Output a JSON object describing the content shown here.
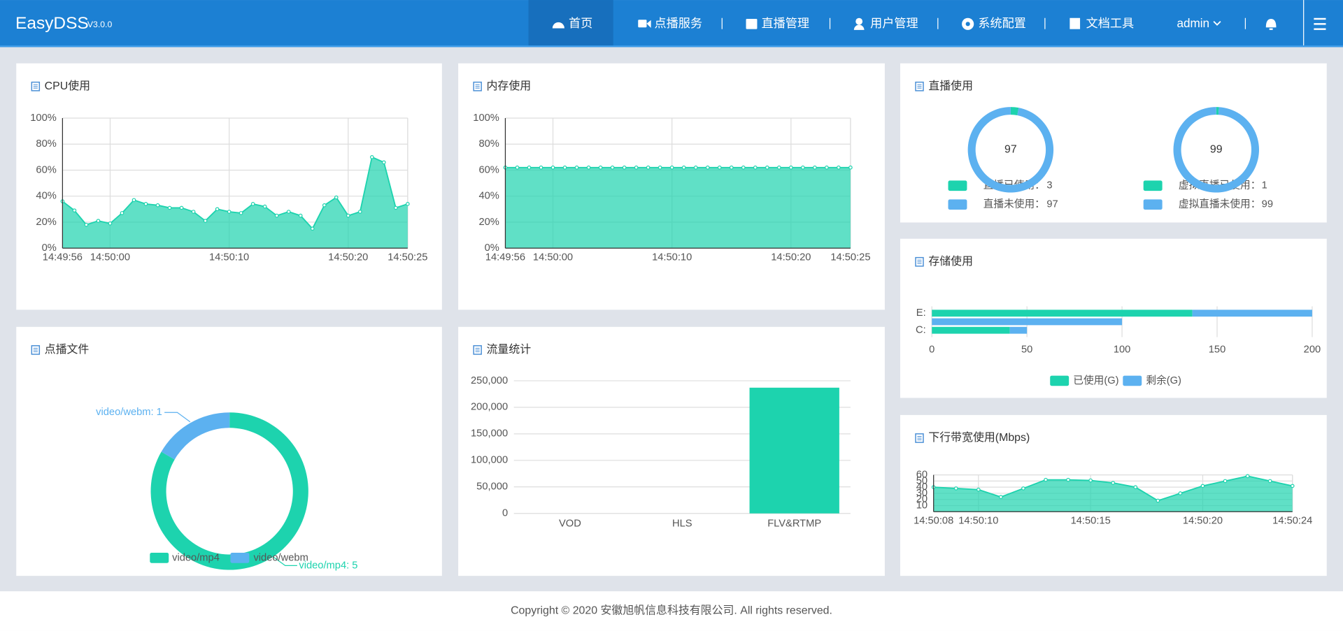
{
  "header": {
    "logo": "EasyDSS",
    "version": "V3.0.0",
    "nav": [
      "首页",
      "点播服务",
      "直播管理",
      "用户管理",
      "系统配置",
      "文档工具"
    ],
    "user": "admin"
  },
  "chart_data": [
    {
      "type": "area",
      "title": "CPU使用",
      "categories": [
        "14:49:56",
        null,
        null,
        null,
        "14:50:00",
        null,
        null,
        null,
        null,
        null,
        null,
        null,
        null,
        null,
        "14:50:10",
        null,
        null,
        null,
        null,
        null,
        null,
        null,
        null,
        null,
        "14:50:20",
        null,
        null,
        null,
        null,
        "14:50:25"
      ],
      "values": [
        36,
        29,
        18,
        21,
        19,
        27,
        37,
        34,
        33,
        31,
        31,
        28,
        21,
        30,
        28,
        27,
        34,
        32,
        25,
        28,
        25,
        15,
        33,
        39,
        25,
        28,
        70,
        66,
        31,
        34
      ],
      "color": "#1dd3ae",
      "ylim": [
        0,
        100
      ],
      "yticks": [
        {
          "value": 0,
          "label": "0%"
        },
        {
          "value": 20,
          "label": "20%"
        },
        {
          "value": 40,
          "label": "40%"
        },
        {
          "value": 60,
          "label": "60%"
        },
        {
          "value": 80,
          "label": "80%"
        },
        {
          "value": 100,
          "label": "100%"
        }
      ],
      "grid": true
    },
    {
      "type": "area",
      "title": "内存使用",
      "categories": [
        "14:49:56",
        null,
        null,
        null,
        "14:50:00",
        null,
        null,
        null,
        null,
        null,
        null,
        null,
        null,
        null,
        "14:50:10",
        null,
        null,
        null,
        null,
        null,
        null,
        null,
        null,
        null,
        "14:50:20",
        null,
        null,
        null,
        null,
        "14:50:25"
      ],
      "values": [
        62,
        62,
        62,
        62,
        62,
        62,
        62,
        62,
        62,
        62,
        62,
        62,
        62,
        62,
        62,
        62,
        62,
        62,
        62,
        62,
        62,
        62,
        62,
        62,
        62,
        62,
        62,
        62,
        62,
        62
      ],
      "color": "#1dd3ae",
      "ylim": [
        0,
        100
      ],
      "yticks": [
        {
          "value": 0,
          "label": "0%"
        },
        {
          "value": 20,
          "label": "20%"
        },
        {
          "value": 40,
          "label": "40%"
        },
        {
          "value": 60,
          "label": "60%"
        },
        {
          "value": 80,
          "label": "80%"
        },
        {
          "value": 100,
          "label": "100%"
        }
      ],
      "grid": true
    },
    {
      "type": "donut",
      "title": "直播使用",
      "colors": [
        "#1dd3ae",
        "#5cb1f0"
      ],
      "pies": [
        {
          "categories": [
            "直播已使用：",
            "直播未使用："
          ],
          "values": [
            3,
            97
          ]
        },
        {
          "categories": [
            "虚拟直播已使用：",
            "虚拟直播未使用："
          ],
          "values": [
            1,
            99
          ]
        }
      ]
    },
    {
      "type": "hbar",
      "title": "存储使用",
      "categories": [
        "E:",
        null,
        "C:"
      ],
      "series": [
        {
          "name": "已使用(G)",
          "color": "#1dd3ae",
          "values": [
            137,
            0,
            41
          ]
        },
        {
          "name": "剩余(G)",
          "color": "#5cb1f0",
          "values": [
            63,
            100,
            9
          ]
        }
      ],
      "xlim": [
        0,
        200
      ],
      "xticks": [
        0,
        50,
        100,
        150,
        200
      ],
      "grid": true
    },
    {
      "type": "pie",
      "title": "点播文件",
      "categories": [
        "video/mp4",
        "video/webm"
      ],
      "values": [
        5,
        1
      ],
      "value_labels": [
        "video/mp4: 5",
        "video/webm: 1"
      ],
      "colors": [
        "#1dd3ae",
        "#5cb1f0"
      ]
    },
    {
      "type": "bar",
      "title": "流量统计",
      "categories": [
        "VOD",
        "HLS",
        "FLV&RTMP"
      ],
      "values": [
        0,
        0,
        237000
      ],
      "color": "#1dd3ae",
      "ylim": [
        0,
        250000
      ],
      "yticks": [
        0,
        {
          "value": 50000,
          "label": "50,000"
        },
        {
          "value": 100000,
          "label": "100,000"
        },
        {
          "value": 150000,
          "label": "150,000"
        },
        {
          "value": 200000,
          "label": "200,000"
        },
        {
          "value": 250000,
          "label": "250,000"
        }
      ],
      "grid": true
    },
    {
      "type": "area",
      "title": "下行带宽使用(Mbps)",
      "categories": [
        "14:50:08",
        null,
        "14:50:10",
        null,
        null,
        null,
        null,
        "14:50:15",
        null,
        null,
        null,
        null,
        "14:50:20",
        null,
        null,
        null,
        "14:50:24"
      ],
      "values": [
        40,
        38,
        36,
        24,
        38,
        52,
        52,
        51,
        47,
        40,
        18,
        30,
        42,
        50,
        58,
        50,
        42
      ],
      "color": "#1dd3ae",
      "ylim": [
        0,
        60
      ],
      "yticks": [
        10,
        20,
        30,
        40,
        50,
        60
      ],
      "grid": true
    }
  ],
  "footer": "Copyright © 2020 安徽旭帆信息科技有限公司. All rights reserved."
}
